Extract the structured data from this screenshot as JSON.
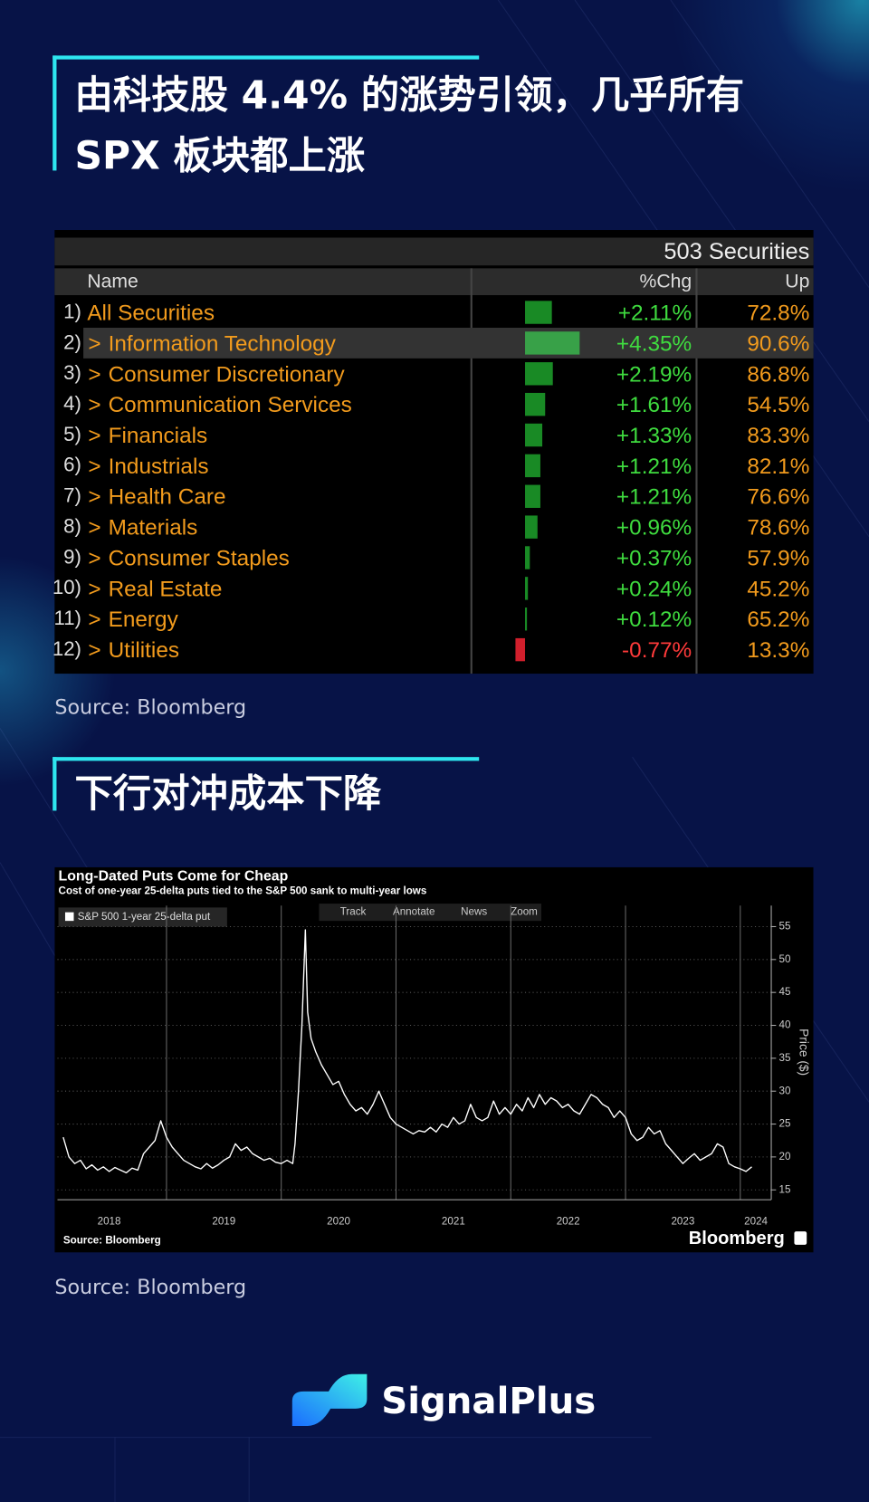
{
  "header1": {
    "title": "由科技股 4.4% 的涨势引领，几乎所有 SPX 板块都上涨"
  },
  "table": {
    "count": "503 Securities",
    "columns": [
      "Name",
      "%Chg",
      "Up"
    ],
    "rows": [
      {
        "index": "1)",
        "name": "All Securities",
        "chg": {
          "value": 2.11,
          "label": "+2.11%"
        },
        "up": "72.8%"
      },
      {
        "index": "2)",
        "name": "Information Technology",
        "chg": {
          "value": 4.35,
          "label": "+4.35%"
        },
        "up": "90.6%"
      },
      {
        "index": "3)",
        "name": "Consumer Discretionary",
        "chg": {
          "value": 2.19,
          "label": "+2.19%"
        },
        "up": "86.8%"
      },
      {
        "index": "4)",
        "name": "Communication Services",
        "chg": {
          "value": 1.61,
          "label": "+1.61%"
        },
        "up": "54.5%"
      },
      {
        "index": "5)",
        "name": "Financials",
        "chg": {
          "value": 1.33,
          "label": "+1.33%"
        },
        "up": "83.3%"
      },
      {
        "index": "6)",
        "name": "Industrials",
        "chg": {
          "value": 1.21,
          "label": "+1.21%"
        },
        "up": "82.1%"
      },
      {
        "index": "7)",
        "name": "Health Care",
        "chg": {
          "value": 1.21,
          "label": "+1.21%"
        },
        "up": "76.6%"
      },
      {
        "index": "8)",
        "name": "Materials",
        "chg": {
          "value": 0.96,
          "label": "+0.96%"
        },
        "up": "78.6%"
      },
      {
        "index": "9)",
        "name": "Consumer Staples",
        "chg": {
          "value": 0.37,
          "label": "+0.37%"
        },
        "up": "57.9%"
      },
      {
        "index": "10)",
        "name": "Real Estate",
        "chg": {
          "value": 0.24,
          "label": "+0.24%"
        },
        "up": "45.2%"
      },
      {
        "index": "11)",
        "name": "Energy",
        "chg": {
          "value": 0.12,
          "label": "+0.12%"
        },
        "up": "65.2%"
      },
      {
        "index": "12)",
        "name": "Utilities",
        "chg": {
          "value": -0.77,
          "label": "-0.77%"
        },
        "up": "13.3%"
      }
    ]
  },
  "source1": "Source: Bloomberg",
  "header2": {
    "title": "下行对冲成本下降"
  },
  "chart_data": {
    "type": "line",
    "title": "Long-Dated Puts Come for Cheap",
    "subtitle": "Cost of one-year 25-delta puts tied to the S&P 500 sank to multi-year lows",
    "toolbar": [
      "Track",
      "Annotate",
      "News",
      "Zoom"
    ],
    "y_label": "Price ($)",
    "source": "Source: Bloomberg",
    "brand": "Bloomberg",
    "x": [
      2018.1,
      2018.15,
      2018.2,
      2018.25,
      2018.3,
      2018.35,
      2018.4,
      2018.45,
      2018.5,
      2018.55,
      2018.6,
      2018.65,
      2018.7,
      2018.75,
      2018.8,
      2018.85,
      2018.9,
      2018.95,
      2019,
      2019.05,
      2019.1,
      2019.15,
      2019.2,
      2019.25,
      2019.3,
      2019.35,
      2019.4,
      2019.45,
      2019.5,
      2019.55,
      2019.6,
      2019.65,
      2019.7,
      2019.75,
      2019.8,
      2019.85,
      2019.9,
      2019.95,
      2020,
      2020.05,
      2020.1,
      2020.12,
      2020.15,
      2020.18,
      2020.21,
      2020.23,
      2020.26,
      2020.3,
      2020.35,
      2020.4,
      2020.45,
      2020.5,
      2020.55,
      2020.6,
      2020.65,
      2020.7,
      2020.75,
      2020.8,
      2020.85,
      2020.9,
      2020.95,
      2021,
      2021.05,
      2021.1,
      2021.15,
      2021.2,
      2021.25,
      2021.3,
      2021.35,
      2021.4,
      2021.45,
      2021.5,
      2021.55,
      2021.6,
      2021.65,
      2021.7,
      2021.75,
      2021.8,
      2021.85,
      2021.9,
      2021.95,
      2022,
      2022.05,
      2022.1,
      2022.15,
      2022.2,
      2022.25,
      2022.3,
      2022.35,
      2022.4,
      2022.45,
      2022.5,
      2022.55,
      2022.6,
      2022.65,
      2022.7,
      2022.75,
      2022.8,
      2022.85,
      2022.9,
      2022.95,
      2023,
      2023.05,
      2023.1,
      2023.15,
      2023.2,
      2023.25,
      2023.3,
      2023.35,
      2023.4,
      2023.45,
      2023.5,
      2023.55,
      2023.6,
      2023.65,
      2023.7,
      2023.75,
      2023.8,
      2023.85,
      2023.9,
      2023.95,
      2024,
      2024.05,
      2024.1
    ],
    "series": [
      {
        "name": "S&P 500 1-year 25-delta put",
        "color": "#ffffff",
        "values": [
          23.0,
          20.0,
          19.0,
          19.5,
          18.2,
          18.8,
          18.0,
          18.5,
          17.8,
          18.4,
          18.0,
          17.6,
          18.3,
          18.0,
          20.5,
          21.5,
          22.5,
          25.5,
          23.0,
          21.5,
          20.5,
          19.5,
          19.0,
          18.5,
          18.2,
          19.0,
          18.3,
          18.8,
          19.5,
          20.0,
          22.0,
          21.0,
          21.5,
          20.5,
          20.0,
          19.5,
          19.8,
          19.2,
          19.0,
          19.5,
          19.0,
          22.0,
          30.0,
          40.0,
          54.5,
          42.0,
          38.0,
          36.0,
          34.0,
          32.5,
          31.0,
          31.5,
          29.5,
          28.0,
          27.0,
          27.5,
          26.5,
          28.0,
          30.0,
          28.0,
          26.0,
          25.0,
          24.5,
          24.0,
          23.5,
          24.0,
          23.8,
          24.5,
          23.8,
          25.0,
          24.5,
          26.0,
          25.0,
          25.5,
          28.0,
          26.0,
          25.5,
          26.0,
          28.5,
          26.5,
          27.5,
          26.5,
          28.0,
          27.0,
          29.0,
          27.5,
          29.5,
          28.0,
          29.0,
          28.5,
          27.5,
          28.0,
          27.0,
          26.5,
          28.0,
          29.5,
          29.0,
          28.0,
          27.5,
          26.0,
          27.0,
          26.0,
          23.5,
          22.5,
          23.0,
          24.5,
          23.5,
          24.0,
          22.0,
          21.0,
          20.0,
          19.0,
          19.8,
          20.5,
          19.5,
          20.0,
          20.5,
          22.0,
          21.5,
          19.0,
          18.5,
          18.2,
          17.8,
          18.5
        ]
      }
    ],
    "xlim": [
      2018.05,
      2024.27
    ],
    "xticks": [
      2018,
      2019,
      2020,
      2021,
      2022,
      2023,
      2024
    ],
    "ylim": [
      13.5,
      58.2
    ],
    "yticks": [
      15,
      20,
      25,
      30,
      35,
      40,
      45,
      50,
      55
    ],
    "grid": true
  },
  "source2": "Source: Bloomberg",
  "footer": {
    "brand": "SignalPlus"
  }
}
